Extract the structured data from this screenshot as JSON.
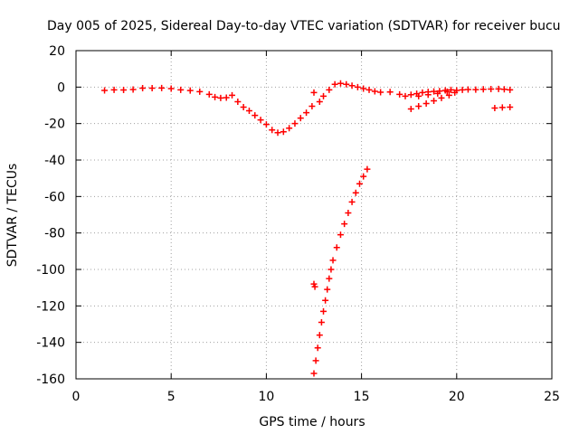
{
  "chart_data": {
    "type": "scatter",
    "title": "Day 005 of 2025, Sidereal Day-to-day VTEC variation (SDTVAR) for receiver bucu",
    "xlabel": "GPS time / hours",
    "ylabel": "SDTVAR / TECUs",
    "xlim": [
      0,
      25
    ],
    "ylim": [
      -160,
      20
    ],
    "xticks": [
      0,
      5,
      10,
      15,
      20,
      25
    ],
    "yticks": [
      20,
      0,
      -20,
      -40,
      -60,
      -80,
      -100,
      -120,
      -140,
      -160
    ],
    "grid": true,
    "marker": "+",
    "series": [
      {
        "color": "#ff0000",
        "points": [
          [
            1.5,
            -1.8
          ],
          [
            2.0,
            -1.5
          ],
          [
            2.5,
            -1.6
          ],
          [
            3.0,
            -1.3
          ],
          [
            3.5,
            -0.6
          ],
          [
            4.0,
            -0.6
          ],
          [
            4.5,
            -0.5
          ],
          [
            5.0,
            -0.8
          ],
          [
            5.5,
            -1.5
          ],
          [
            6.0,
            -1.9
          ],
          [
            6.5,
            -2.5
          ],
          [
            7.0,
            -4.0
          ],
          [
            7.3,
            -5.5
          ],
          [
            7.6,
            -6.0
          ],
          [
            7.9,
            -5.8
          ],
          [
            8.2,
            -4.5
          ],
          [
            8.5,
            -8.0
          ],
          [
            8.8,
            -11.0
          ],
          [
            9.1,
            -13.0
          ],
          [
            9.4,
            -15.5
          ],
          [
            9.7,
            -18.0
          ],
          [
            10.0,
            -20.5
          ],
          [
            10.3,
            -23.5
          ],
          [
            10.6,
            -25.0
          ],
          [
            10.9,
            -24.5
          ],
          [
            11.2,
            -22.5
          ],
          [
            11.5,
            -20.0
          ],
          [
            11.8,
            -17.0
          ],
          [
            12.1,
            -14.0
          ],
          [
            12.4,
            -10.5
          ],
          [
            12.5,
            -3.0
          ],
          [
            12.8,
            -8.0
          ],
          [
            13.0,
            -5.0
          ],
          [
            13.3,
            -1.5
          ],
          [
            13.6,
            1.5
          ],
          [
            13.9,
            2.0
          ],
          [
            14.2,
            1.5
          ],
          [
            14.5,
            0.8
          ],
          [
            14.8,
            0.0
          ],
          [
            15.1,
            -0.8
          ],
          [
            15.4,
            -1.5
          ],
          [
            15.7,
            -2.3
          ],
          [
            16.0,
            -2.8
          ],
          [
            16.5,
            -2.7
          ],
          [
            17.0,
            -4.0
          ],
          [
            17.3,
            -5.0
          ],
          [
            17.6,
            -4.2
          ],
          [
            17.9,
            -3.6
          ],
          [
            18.2,
            -3.0
          ],
          [
            18.5,
            -2.6
          ],
          [
            18.8,
            -2.4
          ],
          [
            19.1,
            -2.2
          ],
          [
            19.4,
            -1.8
          ],
          [
            19.7,
            -1.5
          ],
          [
            20.0,
            -1.8
          ],
          [
            20.3,
            -1.5
          ],
          [
            20.6,
            -1.3
          ],
          [
            21.0,
            -1.4
          ],
          [
            21.4,
            -1.2
          ],
          [
            21.8,
            -1.1
          ],
          [
            22.2,
            -1.0
          ],
          [
            22.5,
            -1.2
          ],
          [
            22.8,
            -1.5
          ],
          [
            17.6,
            -12.0
          ],
          [
            18.0,
            -10.5
          ],
          [
            18.4,
            -9.0
          ],
          [
            18.8,
            -7.5
          ],
          [
            19.2,
            -6.0
          ],
          [
            19.6,
            -4.5
          ],
          [
            19.9,
            -3.0
          ],
          [
            18.0,
            -5.0
          ],
          [
            18.5,
            -4.2
          ],
          [
            19.0,
            -3.5
          ],
          [
            19.5,
            -2.5
          ],
          [
            22.0,
            -11.5
          ],
          [
            22.4,
            -11.2
          ],
          [
            22.8,
            -11.0
          ],
          [
            12.5,
            -157.0
          ],
          [
            12.6,
            -150.0
          ],
          [
            12.7,
            -143.0
          ],
          [
            12.8,
            -136.0
          ],
          [
            12.9,
            -129.0
          ],
          [
            13.0,
            -123.0
          ],
          [
            13.1,
            -117.0
          ],
          [
            13.2,
            -111.0
          ],
          [
            13.3,
            -105.0
          ],
          [
            13.4,
            -100.0
          ],
          [
            13.5,
            -95.0
          ],
          [
            13.7,
            -88.0
          ],
          [
            13.9,
            -81.0
          ],
          [
            14.1,
            -75.0
          ],
          [
            14.3,
            -69.0
          ],
          [
            14.5,
            -63.0
          ],
          [
            14.7,
            -58.0
          ],
          [
            14.9,
            -53.0
          ],
          [
            15.1,
            -49.0
          ],
          [
            15.3,
            -45.0
          ],
          [
            12.5,
            -108.0
          ],
          [
            12.55,
            -109.5
          ]
        ]
      }
    ]
  }
}
